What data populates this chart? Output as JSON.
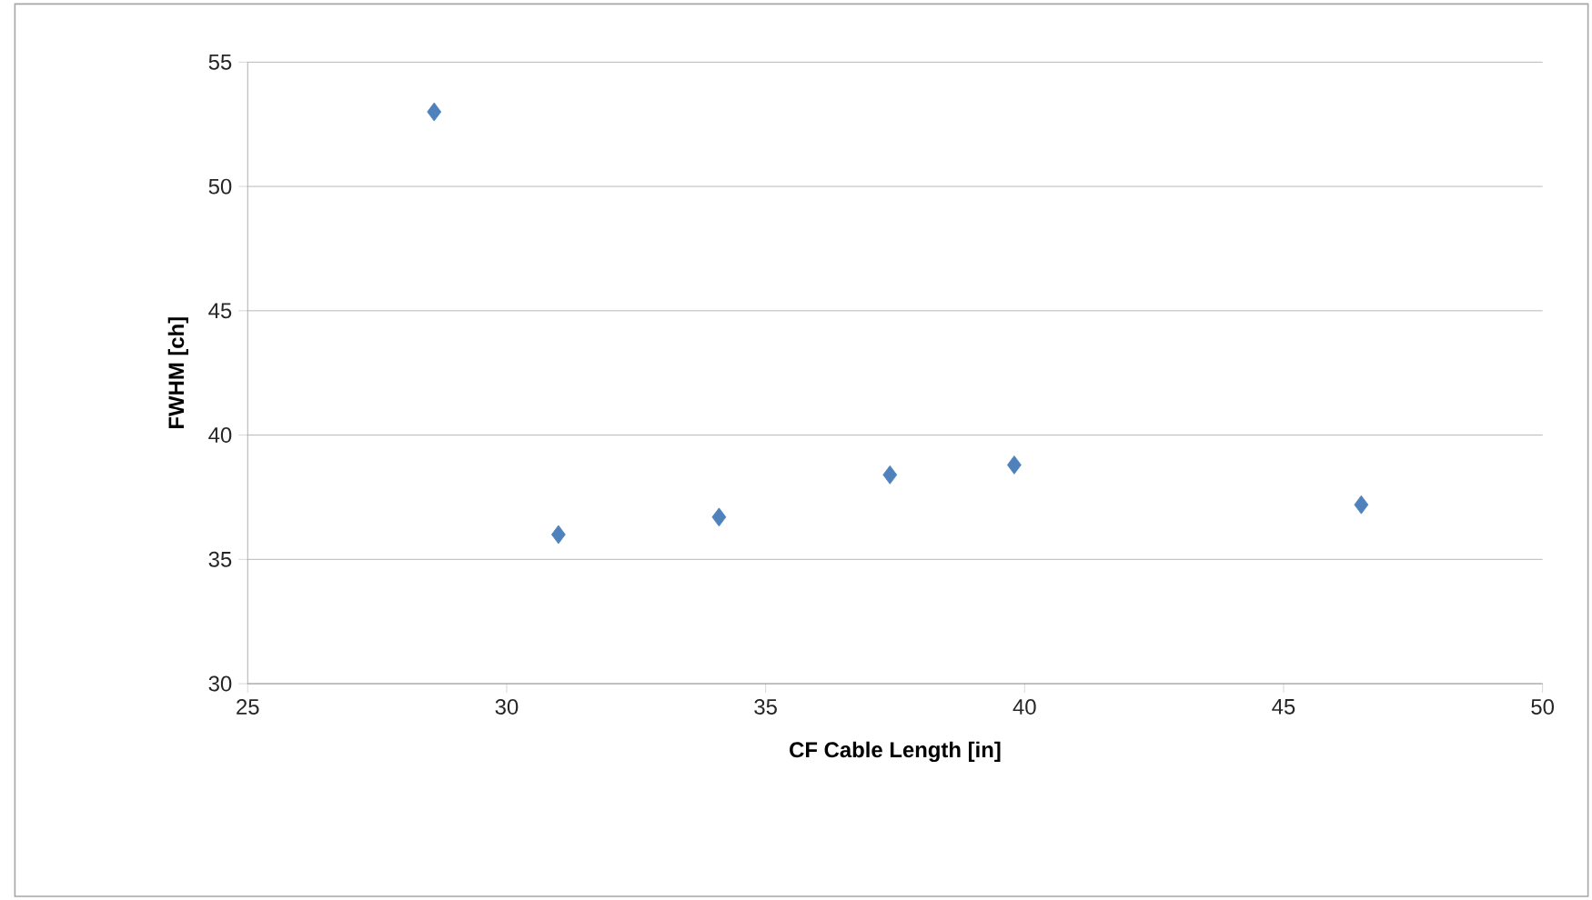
{
  "chart_data": {
    "type": "scatter",
    "xlabel": "CF Cable Length [in]",
    "ylabel": "FWHM [ch]",
    "x": [
      28.6,
      31.0,
      34.1,
      37.4,
      39.8,
      46.5
    ],
    "values": [
      53.0,
      36.0,
      36.7,
      38.4,
      38.8,
      37.2
    ],
    "color": "#4f81bd",
    "marker": "diamond",
    "grid": "y",
    "xlim": [
      25,
      50
    ],
    "ylim": [
      30,
      55
    ],
    "xticks": [
      25,
      30,
      35,
      40,
      45,
      50
    ],
    "yticks": [
      30,
      35,
      40,
      45,
      50,
      55
    ]
  }
}
